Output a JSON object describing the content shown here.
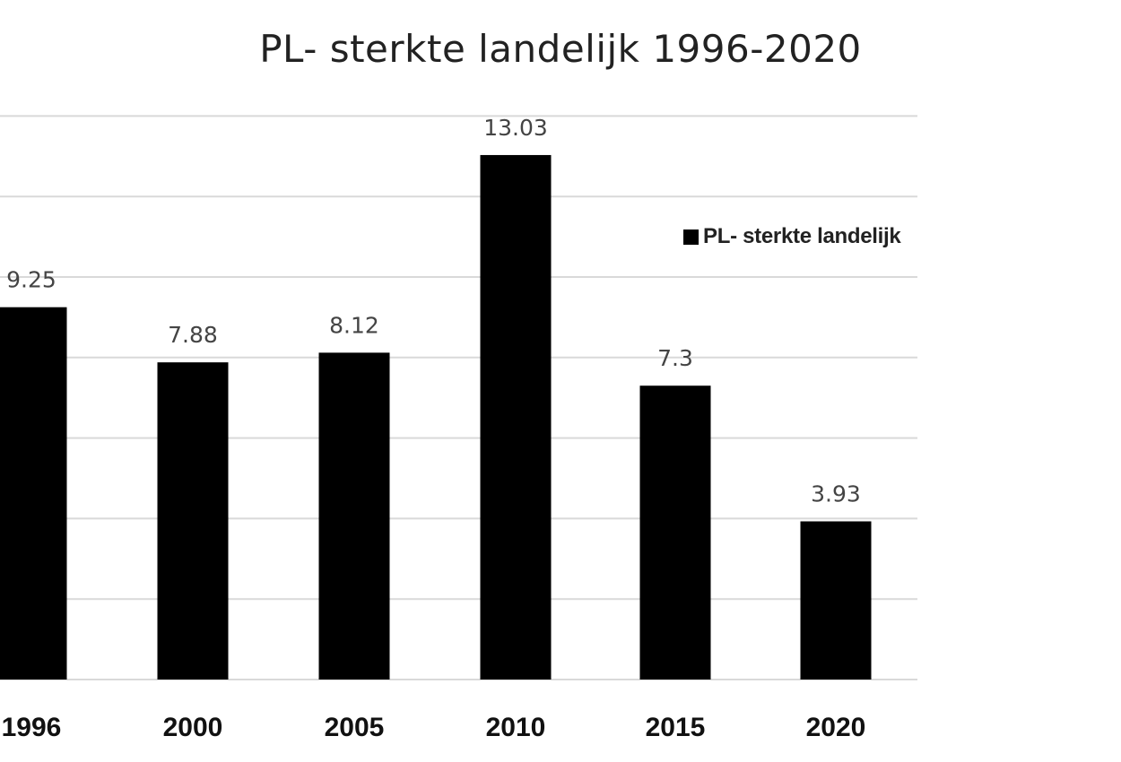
{
  "chart_data": {
    "type": "bar",
    "title": "PL- sterkte landelijk 1996-2020",
    "categories": [
      "1996",
      "2000",
      "2005",
      "2010",
      "2015",
      "2020"
    ],
    "series": [
      {
        "name": "PL- sterkte landelijk",
        "values": [
          9.25,
          7.88,
          8.12,
          13.03,
          7.3,
          3.93
        ],
        "labels": [
          "9.25",
          "7.88",
          "8.12",
          "13.03",
          "7.3",
          "3.93"
        ]
      }
    ],
    "ylim": [
      0,
      14
    ],
    "grid": true,
    "legend_position": "right",
    "colors": {
      "bar": "#000000",
      "grid": "#d9d9d9",
      "data_label": "#444444",
      "tick_label": "#111111"
    }
  }
}
